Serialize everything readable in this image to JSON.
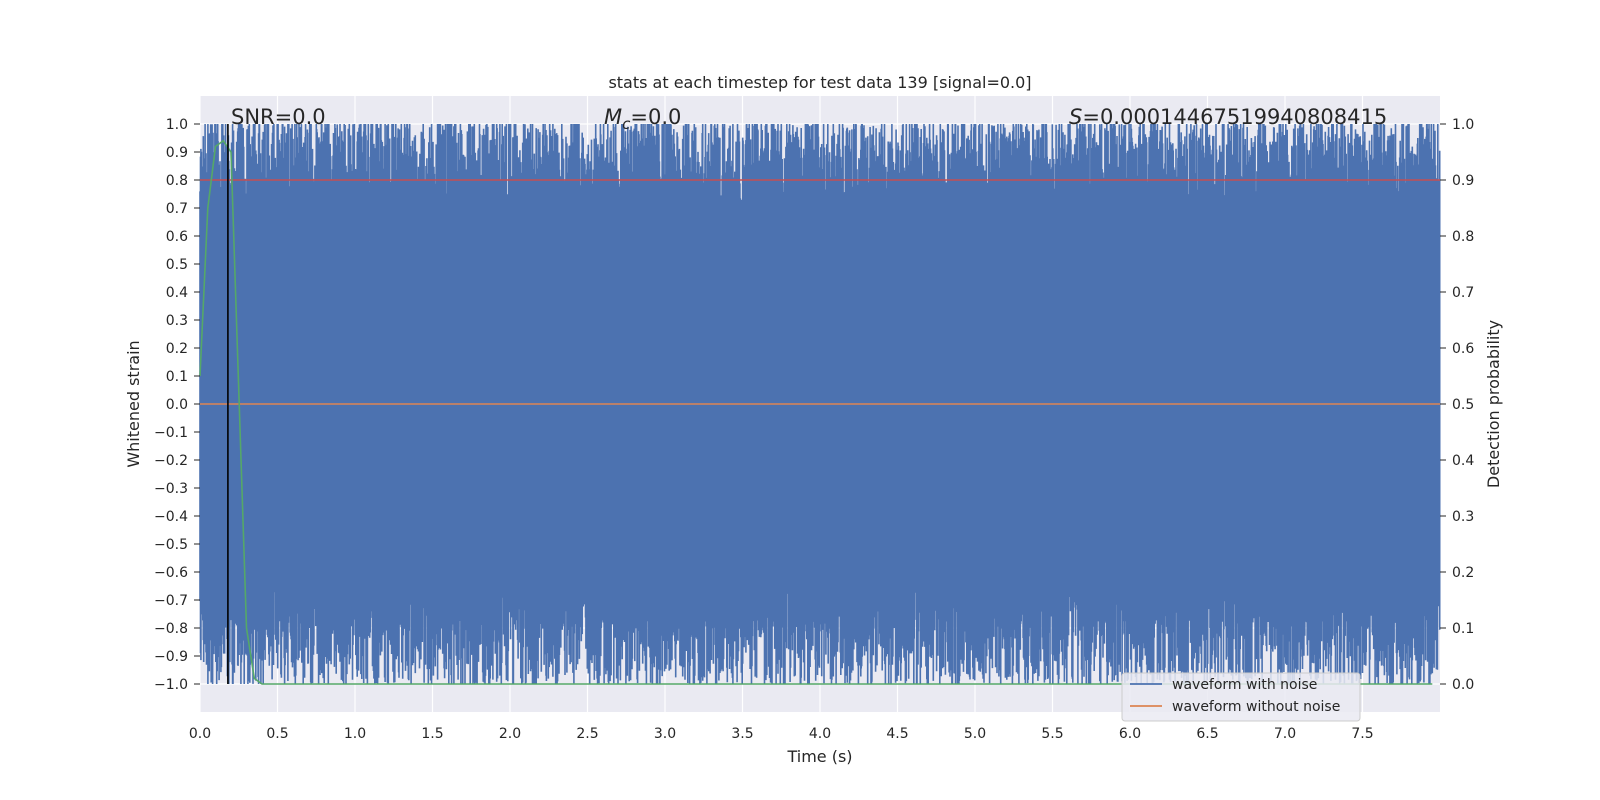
{
  "chart_data": {
    "type": "line",
    "title": "stats at each timestep for test data 139 [signal=0.0]",
    "xlabel": "Time (s)",
    "ylabel_left": "Whitened strain",
    "ylabel_right": "Detection probability",
    "xlim": [
      0.0,
      8.0
    ],
    "ylim_left": [
      -1.1,
      1.1
    ],
    "ylim_right": [
      -0.05,
      1.05
    ],
    "x_ticks": [
      "0.0",
      "0.5",
      "1.0",
      "1.5",
      "2.0",
      "2.5",
      "3.0",
      "3.5",
      "4.0",
      "4.5",
      "5.0",
      "5.5",
      "6.0",
      "6.5",
      "7.0",
      "7.5"
    ],
    "left_ticks": [
      "1.0",
      "0.9",
      "0.8",
      "0.7",
      "0.6",
      "0.5",
      "0.4",
      "0.3",
      "0.2",
      "0.1",
      "0.0",
      "−0.1",
      "−0.2",
      "−0.3",
      "−0.4",
      "−0.5",
      "−0.6",
      "−0.7",
      "−0.8",
      "−0.9",
      "−1.0"
    ],
    "right_ticks": [
      "1.0",
      "0.9",
      "0.8",
      "0.7",
      "0.6",
      "0.5",
      "0.4",
      "0.3",
      "0.2",
      "0.1",
      "0.0"
    ],
    "grid": true,
    "annotations": {
      "snr": "SNR=0.0",
      "mc_symbol": "M",
      "mc_sub": "c",
      "mc_value": "=0.0",
      "s_symbol": "S",
      "s_value": "=0.00014467519940808415"
    },
    "series": [
      {
        "name": "waveform with noise",
        "color": "#4c72b0",
        "axis": "left",
        "amplitude_range": [
          -1.0,
          1.0
        ]
      },
      {
        "name": "waveform without noise",
        "color": "#dd8452",
        "axis": "left",
        "constant": 0.0
      },
      {
        "color": "#55a868",
        "axis": "right",
        "x": [
          0.0,
          0.05,
          0.1,
          0.15,
          0.2,
          0.3,
          0.35,
          0.4,
          7.95
        ],
        "y": [
          0.55,
          0.85,
          0.96,
          0.97,
          0.95,
          0.1,
          0.01,
          0.0,
          0.0
        ]
      }
    ],
    "threshold_line": {
      "color": "#c44e52",
      "axis": "right",
      "y": 0.9
    },
    "vertical_marker": {
      "color": "#000000",
      "x": 0.18
    },
    "legend": {
      "placement": "lower-right",
      "entries": [
        "waveform with noise",
        "waveform without noise"
      ]
    },
    "colors": {
      "axes_bg": "#eaeaf2",
      "grid": "#ffffff"
    }
  }
}
